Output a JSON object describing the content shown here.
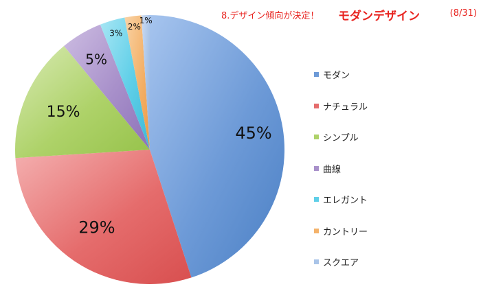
{
  "header": {
    "prefix": "8.デザイン傾向が決定！",
    "highlight": "モダンデザイン",
    "date": "(8/31)"
  },
  "chart_data": {
    "type": "pie",
    "title": "8.デザイン傾向が決定！ モダンデザイン (8/31)",
    "start_angle_deg": 0,
    "direction": "clockwise",
    "legend_position": "right",
    "slices": [
      {
        "label": "モダン",
        "value": 45,
        "display": "45%",
        "color": "#6d9ad7",
        "color_dark": "#4a7fc4",
        "color_light": "#a6c4ee"
      },
      {
        "label": "ナチュラル",
        "value": 29,
        "display": "29%",
        "color": "#e56c6c",
        "color_dark": "#d84f4f",
        "color_light": "#f4b0b0"
      },
      {
        "label": "シンプル",
        "value": 15,
        "display": "15%",
        "color": "#aed269",
        "color_dark": "#96c24a",
        "color_light": "#d8eab3"
      },
      {
        "label": "曲線",
        "value": 5,
        "display": "5%",
        "color": "#a890ca",
        "color_dark": "#8d72b8",
        "color_light": "#cdbde2"
      },
      {
        "label": "エレガント",
        "value": 3,
        "display": "3%",
        "color": "#5fcfe8",
        "color_dark": "#3fb9d6",
        "color_light": "#a8e6f4"
      },
      {
        "label": "カントリー",
        "value": 2,
        "display": "2%",
        "color": "#f4b26a",
        "color_dark": "#ec9a44",
        "color_light": "#f9d3a6"
      },
      {
        "label": "スクエア",
        "value": 1,
        "display": "1%",
        "color": "#a9c4e8",
        "color_dark": "#8fb0de",
        "color_light": "#cddcf2"
      }
    ]
  }
}
